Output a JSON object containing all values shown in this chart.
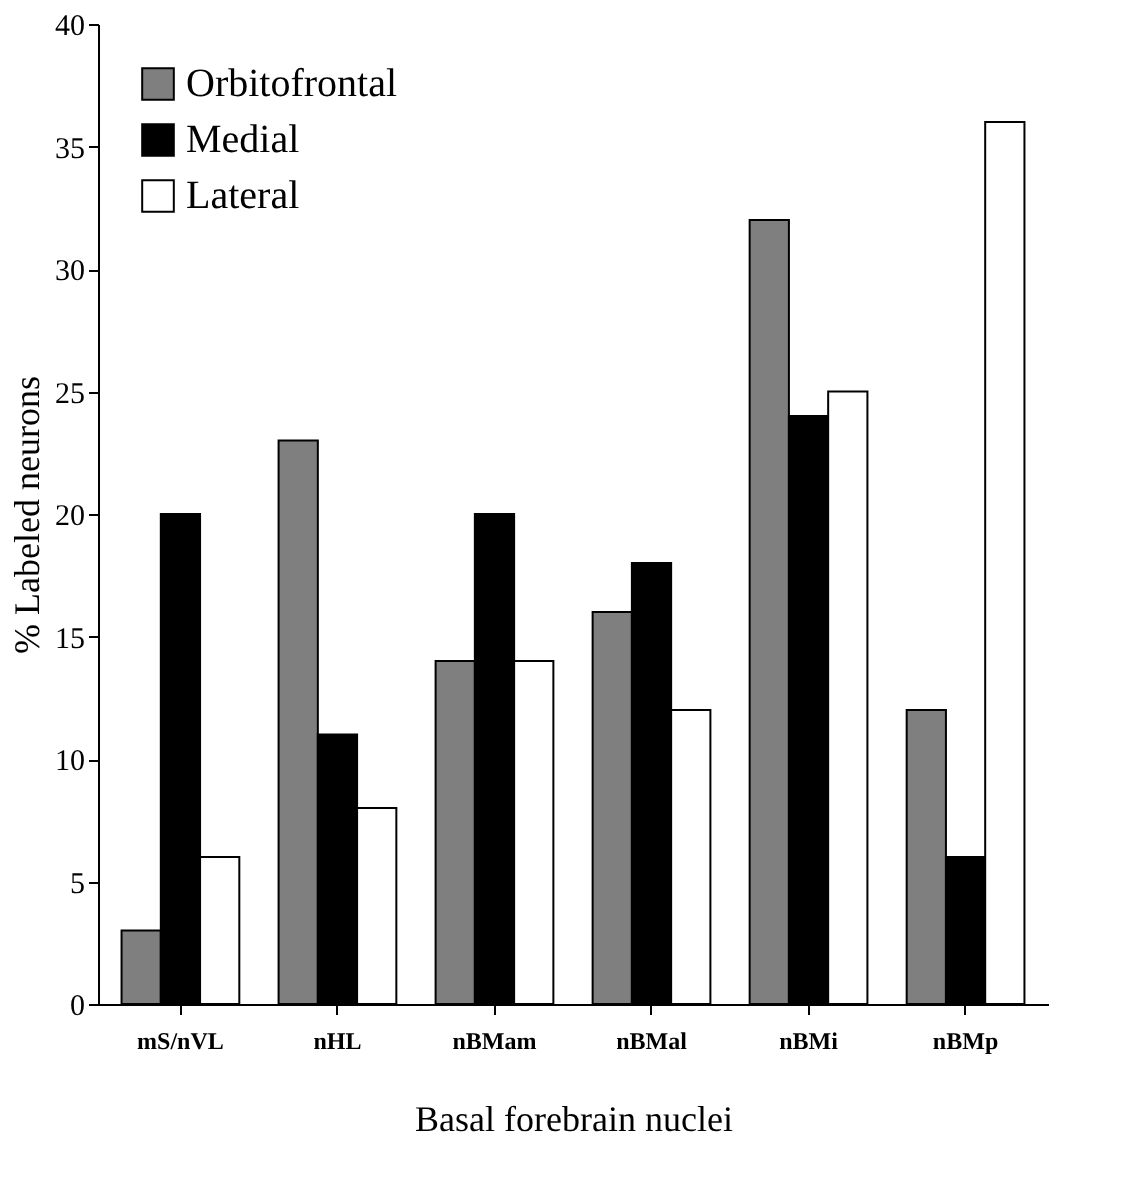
{
  "chart_data": {
    "type": "bar",
    "xlabel": "Basal forebrain nuclei",
    "ylabel": "% Labeled neurons",
    "categories": [
      "mS/nVL",
      "nHL",
      "nBMam",
      "nBMal",
      "nBMi",
      "nBMp"
    ],
    "series": [
      {
        "name": "Orbitofrontal",
        "color": "#7f7f7f",
        "values": [
          3,
          23,
          14,
          16,
          32,
          12
        ]
      },
      {
        "name": "Medial",
        "color": "#000000",
        "values": [
          20,
          11,
          20,
          18,
          24,
          6
        ]
      },
      {
        "name": "Lateral",
        "color": "#ffffff",
        "values": [
          6,
          8,
          14,
          12,
          25,
          36
        ]
      }
    ],
    "ylim": [
      0,
      40
    ],
    "yticks": [
      0,
      5,
      10,
      15,
      20,
      25,
      30,
      35,
      40
    ],
    "grid": false,
    "legend": "top left"
  }
}
